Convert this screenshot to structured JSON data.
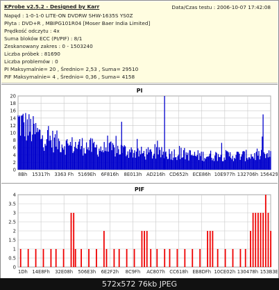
{
  "header": {
    "title": "KProbe v2.5.2 - Designed by Karr",
    "datetime_label": "Data/Czas testu : 2006-10-07 17:42:08",
    "lines": [
      "Napęd : 1-0-1-0 LITE-ON DVDRW SHW-1635S YS0Z",
      "Płyta : DVD+R , MBIPG101R04 [Moser Baer India Limited]",
      "Prędkość odczytu : 4x",
      "Suma bloków ECC (PI/PIF) : 8/1",
      "Zeskanowany zakres : 0 - 1503240",
      "Liczba próbek : 81690",
      "Liczba problemów : 0",
      "PI Maksymalnie= 20 , Średnio= 2,53 , Suma= 29510",
      "PIF Maksymalnie= 4 , Średnio= 0,36 , Suma= 4158"
    ]
  },
  "chart_data": [
    {
      "type": "area",
      "title": "PI",
      "ylim": [
        0,
        20
      ],
      "yticks": [
        "0",
        "2",
        "4",
        "6",
        "8",
        "10",
        "12",
        "14",
        "16",
        "18",
        "20"
      ],
      "xticks": [
        "8Bh",
        "15317h",
        "3363 Fh",
        "5169Eh",
        "6F816h",
        "8E013h",
        "AD216h",
        "CD652h",
        "ECE86h",
        "10E977h",
        "132706h",
        "156429h"
      ],
      "grid": true,
      "color": "#0000cc",
      "x": [
        0,
        5,
        10,
        15,
        20,
        25,
        30,
        35,
        40,
        45,
        50,
        55,
        60,
        65,
        70,
        75,
        80,
        85,
        90,
        95,
        100
      ],
      "values": [
        12,
        10,
        8,
        7,
        6,
        6,
        5.5,
        5,
        5,
        4.5,
        4,
        4,
        4,
        4,
        3.5,
        3.5,
        3.5,
        3.5,
        3.5,
        3.5,
        3.5
      ],
      "spikes": [
        {
          "x": 58,
          "value": 20
        },
        {
          "x": 41,
          "value": 13
        },
        {
          "x": 97,
          "value": 15
        }
      ]
    },
    {
      "type": "bar",
      "title": "PIF",
      "ylim": [
        0,
        4
      ],
      "yticks": [
        "0",
        "0.5",
        "1",
        "1.5",
        "2",
        "2.5",
        "3",
        "3.5",
        "4"
      ],
      "xticks": [
        "1Dh",
        "14E8Fh",
        "32E08h",
        "506E3h",
        "6E2F2h",
        "8C9Fh",
        "AC807h",
        "CC618h",
        "EB8DFh",
        "10CE02h",
        "130478h",
        "153B3Eh"
      ],
      "grid": true,
      "color": "#ee0000",
      "values": [
        {
          "x": 1,
          "v": 1
        },
        {
          "x": 4,
          "v": 1
        },
        {
          "x": 7,
          "v": 1
        },
        {
          "x": 10,
          "v": 1
        },
        {
          "x": 13,
          "v": 1
        },
        {
          "x": 15,
          "v": 1
        },
        {
          "x": 18,
          "v": 1
        },
        {
          "x": 21,
          "v": 3
        },
        {
          "x": 22,
          "v": 3
        },
        {
          "x": 22.7,
          "v": 1
        },
        {
          "x": 25,
          "v": 1
        },
        {
          "x": 28,
          "v": 1
        },
        {
          "x": 31,
          "v": 1
        },
        {
          "x": 34,
          "v": 2
        },
        {
          "x": 35,
          "v": 1
        },
        {
          "x": 38,
          "v": 1
        },
        {
          "x": 40,
          "v": 1
        },
        {
          "x": 43,
          "v": 1
        },
        {
          "x": 46,
          "v": 1
        },
        {
          "x": 49,
          "v": 2
        },
        {
          "x": 50,
          "v": 2
        },
        {
          "x": 51,
          "v": 2
        },
        {
          "x": 52.5,
          "v": 1
        },
        {
          "x": 55,
          "v": 1
        },
        {
          "x": 58,
          "v": 1
        },
        {
          "x": 60,
          "v": 1
        },
        {
          "x": 63,
          "v": 1
        },
        {
          "x": 66,
          "v": 1
        },
        {
          "x": 69,
          "v": 1
        },
        {
          "x": 72,
          "v": 1
        },
        {
          "x": 75,
          "v": 2
        },
        {
          "x": 76,
          "v": 2
        },
        {
          "x": 77,
          "v": 2
        },
        {
          "x": 79,
          "v": 1
        },
        {
          "x": 82,
          "v": 1
        },
        {
          "x": 85,
          "v": 1
        },
        {
          "x": 88,
          "v": 1
        },
        {
          "x": 90,
          "v": 1
        },
        {
          "x": 92,
          "v": 2
        },
        {
          "x": 93,
          "v": 3
        },
        {
          "x": 94,
          "v": 3
        },
        {
          "x": 95,
          "v": 3
        },
        {
          "x": 96,
          "v": 3
        },
        {
          "x": 97,
          "v": 3
        },
        {
          "x": 98,
          "v": 4
        },
        {
          "x": 99,
          "v": 3
        },
        {
          "x": 100,
          "v": 2
        }
      ]
    }
  ],
  "footer": {
    "caption": "572x572 76kb JPEG"
  }
}
